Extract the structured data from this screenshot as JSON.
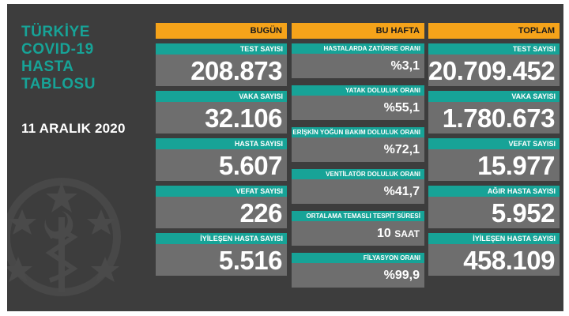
{
  "title_lines": [
    "TÜRKİYE",
    "COVID-19",
    "HASTA",
    "TABLOSU"
  ],
  "date": "11 ARALIK 2020",
  "colors": {
    "background": "#3d3d3d",
    "header": "#f5a31a",
    "label": "#17a397",
    "value_box": "#6e6e6e",
    "title": "#17a397"
  },
  "bugun": {
    "header": "BUGÜN",
    "items": [
      {
        "label": "TEST SAYISI",
        "value": "208.873"
      },
      {
        "label": "VAKA SAYISI",
        "value": "32.106"
      },
      {
        "label": "HASTA SAYISI",
        "value": "5.607"
      },
      {
        "label": "VEFAT SAYISI",
        "value": "226"
      },
      {
        "label": "İYİLEŞEN HASTA SAYISI",
        "value": "5.516"
      }
    ]
  },
  "hafta": {
    "header": "BU HAFTA",
    "items": [
      {
        "label": "HASTALARDA ZATÜRRE ORANI",
        "value": "%3,1"
      },
      {
        "label": "YATAK DOLULUK ORANI",
        "value": "%55,1"
      },
      {
        "label": "ERİŞKİN YOĞUN BAKIM DOLULUK ORANI",
        "value": "%72,1"
      },
      {
        "label": "VENTİLATÖR DOLULUK ORANI",
        "value": "%41,7"
      },
      {
        "label": "ORTALAMA TEMASLI TESPİT SÜRESİ",
        "value": "10",
        "unit": "SAAT"
      },
      {
        "label": "FİLYASYON ORANI",
        "value": "%99,9"
      }
    ]
  },
  "toplam": {
    "header": "TOPLAM",
    "items": [
      {
        "label": "TEST SAYISI",
        "value": "20.709.452"
      },
      {
        "label": "VAKA SAYISI",
        "value": "1.780.673"
      },
      {
        "label": "VEFAT SAYISI",
        "value": "15.977"
      },
      {
        "label": "AĞIR HASTA SAYISI",
        "value": "5.952"
      },
      {
        "label": "İYİLEŞEN HASTA SAYISI",
        "value": "458.109"
      }
    ]
  }
}
